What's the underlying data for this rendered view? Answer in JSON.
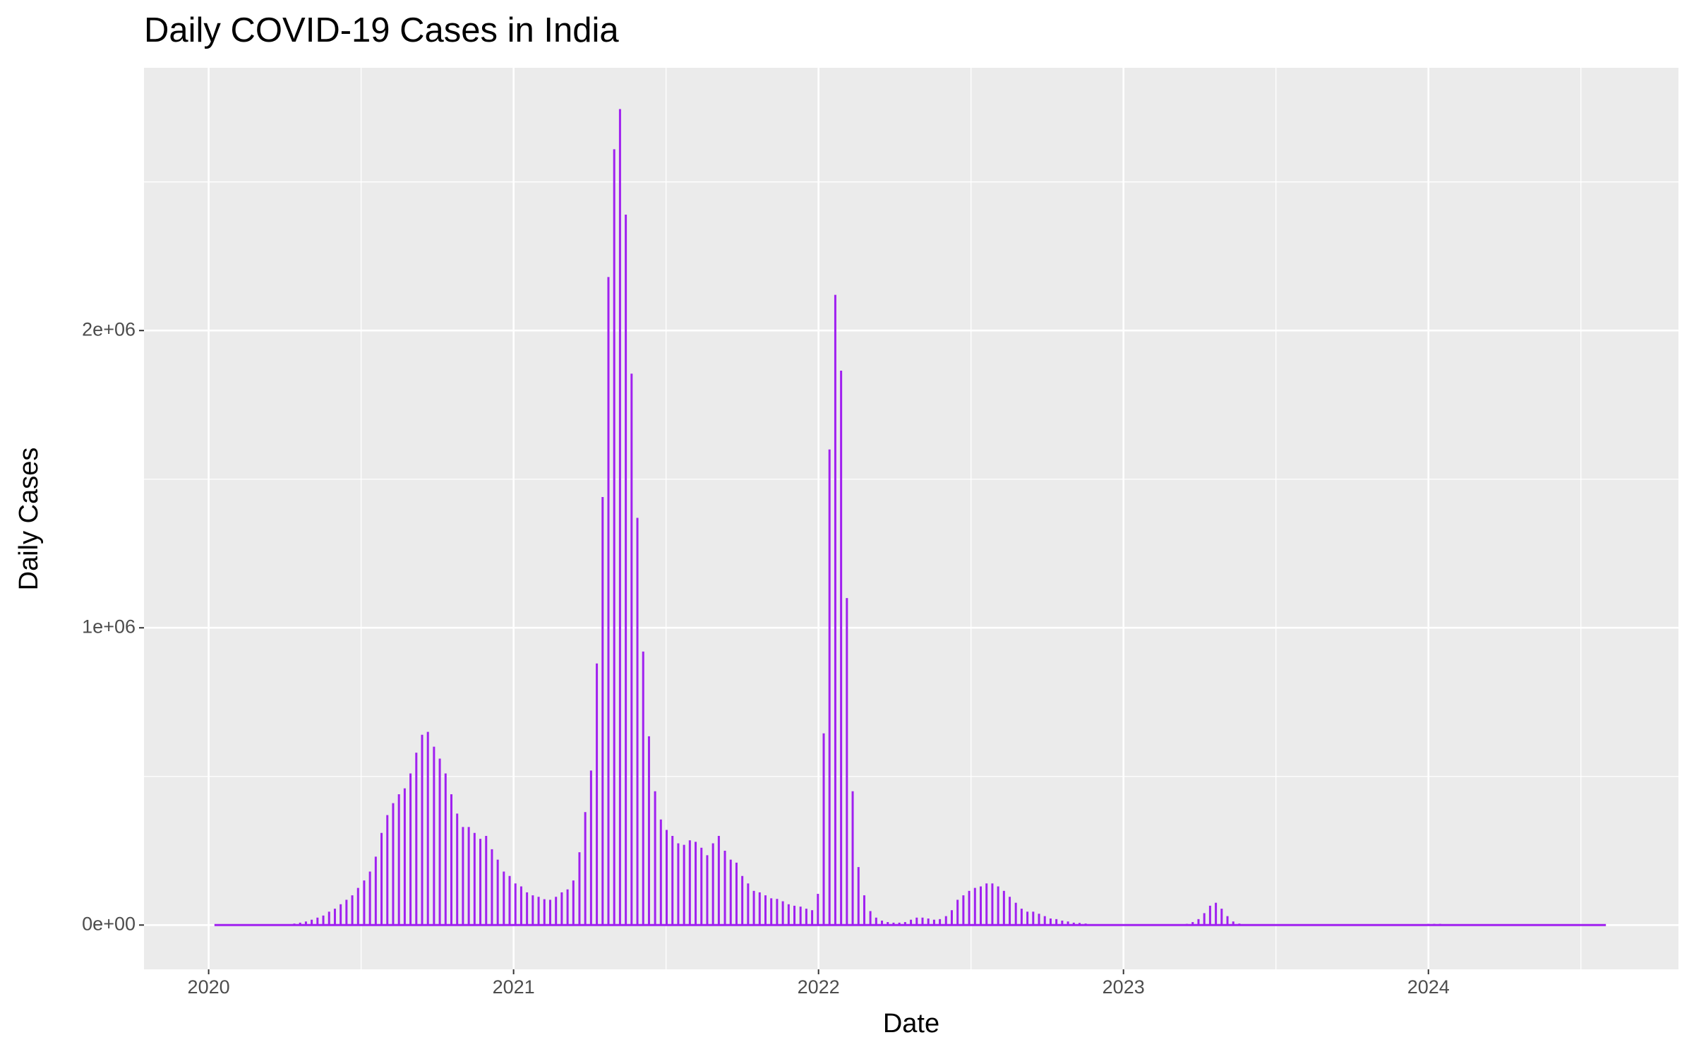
{
  "chart_data": {
    "type": "spikes",
    "title": "Daily COVID-19 Cases in India",
    "x_label": "Date",
    "y_label": "Daily Cases",
    "series": [
      {
        "name": "Daily Cases",
        "color": "#a020f0",
        "x": [
          2020.019,
          2020.262,
          2020.281,
          2020.3,
          2020.319,
          2020.338,
          2020.357,
          2020.376,
          2020.395,
          2020.414,
          2020.433,
          2020.452,
          2020.471,
          2020.49,
          2020.51,
          2020.529,
          2020.548,
          2020.567,
          2020.586,
          2020.605,
          2020.624,
          2020.643,
          2020.662,
          2020.681,
          2020.7,
          2020.719,
          2020.739,
          2020.758,
          2020.777,
          2020.796,
          2020.815,
          2020.834,
          2020.853,
          2020.872,
          2020.891,
          2020.91,
          2020.929,
          2020.948,
          2020.968,
          2020.987,
          2021.006,
          2021.025,
          2021.044,
          2021.063,
          2021.082,
          2021.101,
          2021.12,
          2021.139,
          2021.158,
          2021.177,
          2021.196,
          2021.216,
          2021.235,
          2021.254,
          2021.273,
          2021.292,
          2021.311,
          2021.33,
          2021.349,
          2021.368,
          2021.387,
          2021.406,
          2021.425,
          2021.444,
          2021.464,
          2021.483,
          2021.502,
          2021.521,
          2021.54,
          2021.559,
          2021.578,
          2021.597,
          2021.616,
          2021.635,
          2021.654,
          2021.673,
          2021.693,
          2021.712,
          2021.731,
          2021.75,
          2021.769,
          2021.788,
          2021.807,
          2021.826,
          2021.845,
          2021.864,
          2021.883,
          2021.902,
          2021.921,
          2021.941,
          2021.96,
          2021.979,
          2021.998,
          2022.017,
          2022.036,
          2022.055,
          2022.074,
          2022.093,
          2022.112,
          2022.131,
          2022.15,
          2022.17,
          2022.189,
          2022.208,
          2022.227,
          2022.246,
          2022.265,
          2022.284,
          2022.303,
          2022.322,
          2022.341,
          2022.36,
          2022.379,
          2022.398,
          2022.418,
          2022.437,
          2022.456,
          2022.475,
          2022.494,
          2022.513,
          2022.532,
          2022.551,
          2022.57,
          2022.589,
          2022.608,
          2022.627,
          2022.647,
          2022.666,
          2022.685,
          2022.704,
          2022.723,
          2022.742,
          2022.761,
          2022.78,
          2022.799,
          2022.818,
          2022.837,
          2022.856,
          2022.876,
          2023.208,
          2023.227,
          2023.246,
          2023.265,
          2023.284,
          2023.303,
          2023.322,
          2023.341,
          2023.36,
          2023.38,
          2023.399,
          2024.0,
          2024.019,
          2024.038,
          2024.582
        ],
        "values": [
          0,
          3000,
          5000,
          8000,
          12000,
          18000,
          25000,
          32000,
          45000,
          55000,
          70000,
          85000,
          100000,
          125000,
          150000,
          180000,
          230000,
          310000,
          370000,
          410000,
          440000,
          460000,
          510000,
          580000,
          640000,
          650000,
          600000,
          560000,
          510000,
          440000,
          375000,
          330000,
          330000,
          310000,
          290000,
          300000,
          255000,
          220000,
          180000,
          165000,
          140000,
          130000,
          110000,
          100000,
          95000,
          87000,
          85000,
          95000,
          110000,
          120000,
          150000,
          245000,
          380000,
          520000,
          880000,
          1440000,
          2180000,
          2610000,
          2745000,
          2390000,
          1855000,
          1370000,
          920000,
          635000,
          450000,
          355000,
          320000,
          300000,
          275000,
          270000,
          285000,
          280000,
          260000,
          235000,
          275000,
          300000,
          250000,
          220000,
          210000,
          165000,
          140000,
          115000,
          110000,
          100000,
          90000,
          88000,
          80000,
          70000,
          65000,
          62000,
          55000,
          50000,
          105000,
          645000,
          1600000,
          2120000,
          1865000,
          1100000,
          450000,
          195000,
          100000,
          47000,
          25000,
          15000,
          10000,
          8000,
          8000,
          10000,
          18000,
          25000,
          25000,
          22000,
          18000,
          20000,
          30000,
          50000,
          85000,
          100000,
          115000,
          125000,
          130000,
          140000,
          140000,
          130000,
          115000,
          95000,
          75000,
          55000,
          45000,
          45000,
          38000,
          30000,
          22000,
          20000,
          15000,
          12000,
          8000,
          7000,
          5000,
          4000,
          10000,
          20000,
          40000,
          65000,
          75000,
          55000,
          30000,
          12000,
          5000,
          2000,
          4000,
          4000,
          4000,
          0
        ]
      }
    ],
    "xlim": [
      2019.788,
      2024.82
    ],
    "xticks": [
      2020,
      2021,
      2022,
      2023,
      2024
    ],
    "x_minor_ticks": [
      2020.5,
      2021.5,
      2022.5,
      2023.5,
      2024.5
    ],
    "ylim": [
      -149000,
      2884000
    ],
    "yticks": [
      {
        "value": 0,
        "label": "0e+00"
      },
      {
        "value": 1000000,
        "label": "1e+06"
      },
      {
        "value": 2000000,
        "label": "2e+06"
      }
    ],
    "y_minor_ticks": [
      500000,
      1500000,
      2500000
    ],
    "grid": true
  }
}
